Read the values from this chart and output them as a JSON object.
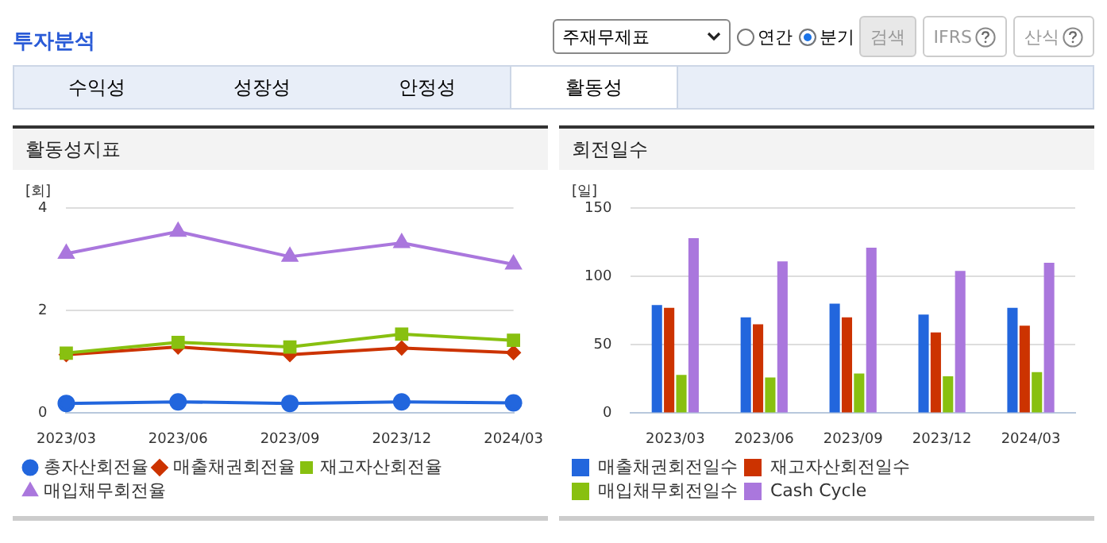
{
  "chart_data": [
    {
      "type": "other",
      "annotations": [
        "투자분석",
        "주재무제표",
        "연간",
        "분기",
        "검색",
        "IFRS",
        "산식",
        "수익성",
        "성장성",
        "안정성",
        "활동성"
      ]
    },
    {
      "type": "line",
      "title": "활동성지표",
      "ylabel": "[회]",
      "categories": [
        "2023/03",
        "2023/06",
        "2023/09",
        "2023/12",
        "2024/03"
      ],
      "ylim": [
        0,
        4
      ],
      "yticks": [
        0,
        2,
        4
      ],
      "grid": "y",
      "legend": "bottom",
      "line_style": "solid",
      "series": [
        {
          "name": "총자산회전율",
          "color": "#2266dd",
          "marker": "circle",
          "values": [
            0.19,
            0.22,
            0.19,
            0.22,
            0.2
          ]
        },
        {
          "name": "매출채권회전율",
          "color": "#cc3300",
          "marker": "diamond",
          "values": [
            1.14,
            1.29,
            1.14,
            1.27,
            1.18
          ]
        },
        {
          "name": "재고자산회전율",
          "color": "#88c010",
          "marker": "square",
          "values": [
            1.17,
            1.38,
            1.29,
            1.54,
            1.42
          ]
        },
        {
          "name": "매입채무회전율",
          "color": "#aa77dd",
          "marker": "triangle",
          "values": [
            3.11,
            3.54,
            3.05,
            3.32,
            2.9
          ]
        }
      ]
    },
    {
      "type": "bar",
      "title": "회전일수",
      "ylabel": "[일]",
      "categories": [
        "2023/03",
        "2023/06",
        "2023/09",
        "2023/12",
        "2024/03"
      ],
      "ylim": [
        0,
        150
      ],
      "yticks": [
        0,
        50,
        100,
        150
      ],
      "grid": "y",
      "legend": "bottom",
      "series": [
        {
          "name": "매출채권회전일수",
          "color": "#2266dd",
          "values": [
            79,
            70,
            80,
            72,
            77
          ]
        },
        {
          "name": "재고자산회전일수",
          "color": "#cc3300",
          "values": [
            77,
            65,
            70,
            59,
            64
          ]
        },
        {
          "name": "매입채무회전일수",
          "color": "#88c010",
          "values": [
            28,
            26,
            29,
            27,
            30
          ]
        },
        {
          "name": "Cash Cycle",
          "color": "#aa77dd",
          "values": [
            128,
            111,
            121,
            104,
            110
          ]
        }
      ]
    }
  ]
}
